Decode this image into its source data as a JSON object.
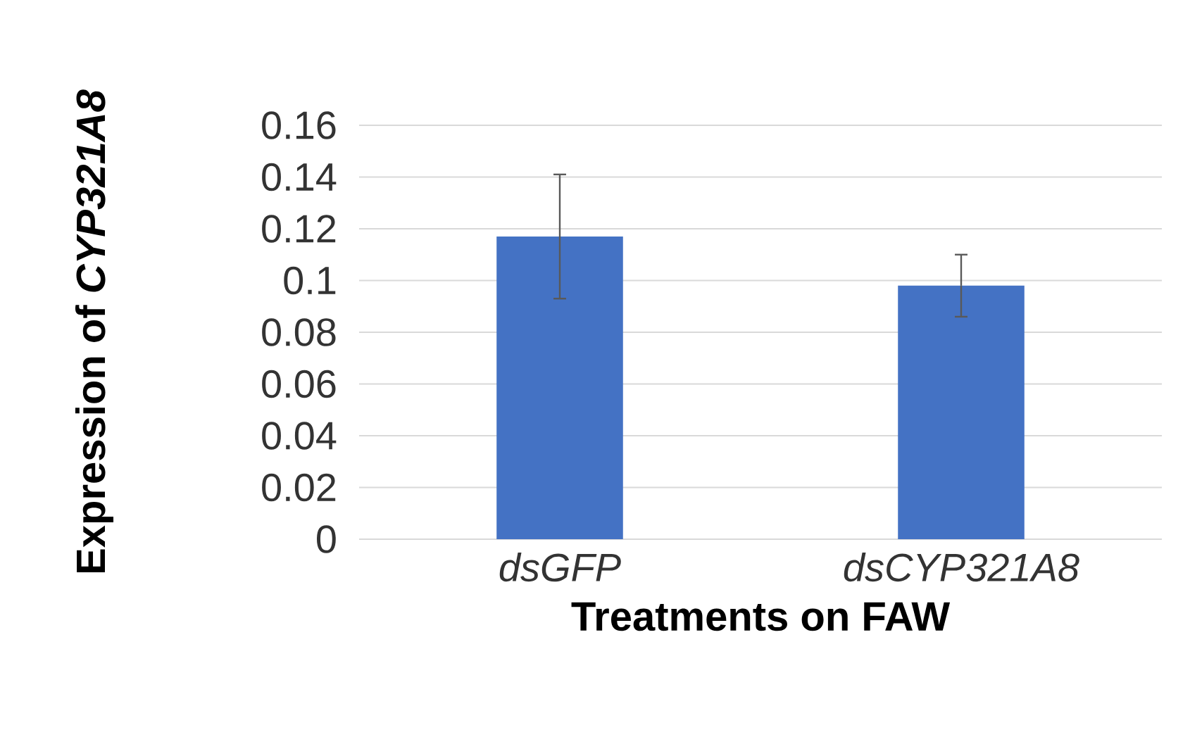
{
  "chart_data": {
    "type": "bar",
    "xlabel": "Treatments on FAW",
    "ylabel": "Expression of *CYP321A8*",
    "categories": [
      "dsGFP",
      "dsCYP321A8"
    ],
    "values": [
      0.117,
      0.098
    ],
    "errors": [
      0.024,
      0.012
    ],
    "color": "#4472c4",
    "ylim": [
      0,
      0.16
    ],
    "yticks": [
      0,
      0.02,
      0.04,
      0.06,
      0.08,
      0.1,
      0.12,
      0.14,
      0.16
    ],
    "grid": "y"
  }
}
